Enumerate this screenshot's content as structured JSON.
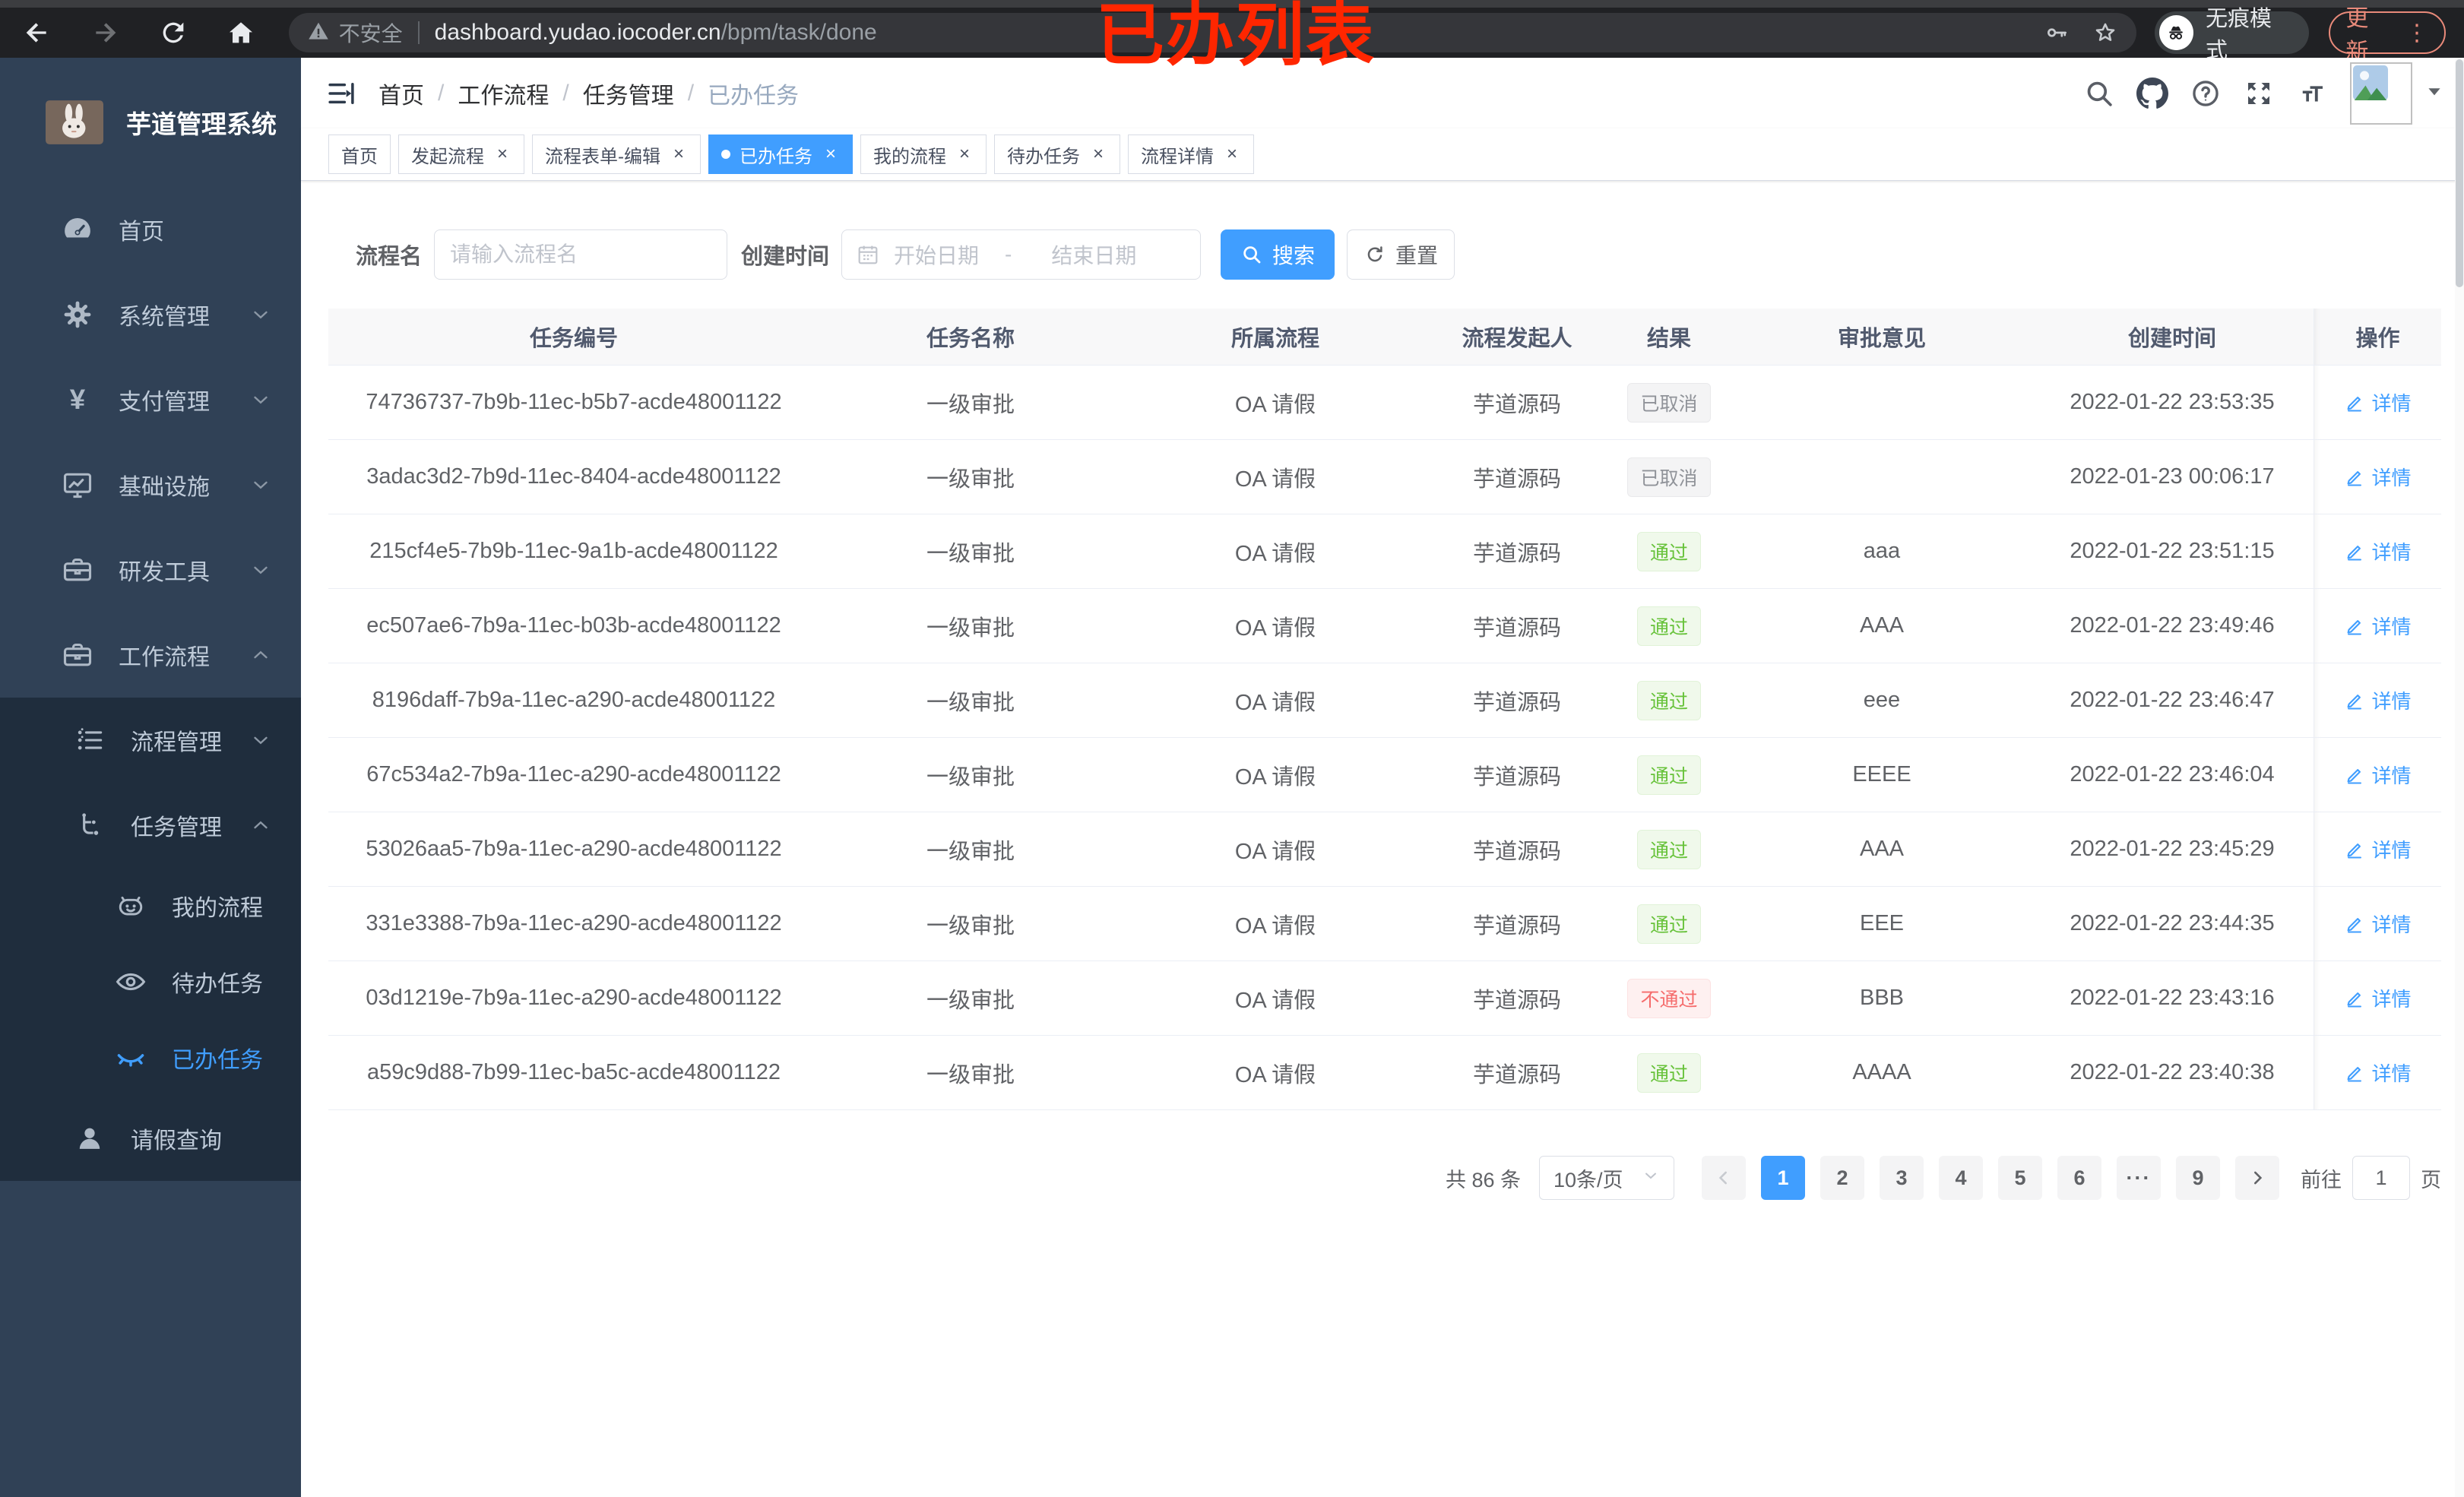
{
  "browser": {
    "security_label": "不安全",
    "url_domain": "dashboard.yudao.iocoder.cn",
    "url_path": "/bpm/task/done",
    "incognito_label": "无痕模式",
    "update_label": "更新",
    "icons": [
      "back-icon",
      "forward-icon",
      "reload-icon",
      "home-icon",
      "warning-icon",
      "key-icon",
      "star-icon",
      "incognito-icon",
      "more-vert-icon"
    ]
  },
  "annotation": {
    "text": "已办列表",
    "color": "#ff2600"
  },
  "sidebar": {
    "title": "芋道管理系统",
    "menu": [
      {
        "label": "首页",
        "icon": "dashboard-icon",
        "level": 1,
        "section": "base"
      },
      {
        "label": "系统管理",
        "icon": "gear-icon",
        "level": 1,
        "section": "base",
        "chevron": "down"
      },
      {
        "label": "支付管理",
        "icon": "yen-icon",
        "level": 1,
        "section": "base",
        "chevron": "down"
      },
      {
        "label": "基础设施",
        "icon": "monitor-icon",
        "level": 1,
        "section": "base",
        "chevron": "down"
      },
      {
        "label": "研发工具",
        "icon": "toolbox-icon",
        "level": 1,
        "section": "base",
        "chevron": "down"
      },
      {
        "label": "工作流程",
        "icon": "briefcase-icon",
        "level": 1,
        "section": "base",
        "chevron": "up"
      },
      {
        "label": "流程管理",
        "icon": "list-icon",
        "level": 2,
        "section": "sub",
        "chevron": "down"
      },
      {
        "label": "任务管理",
        "icon": "flow-icon",
        "level": 2,
        "section": "sub",
        "chevron": "up"
      },
      {
        "label": "我的流程",
        "icon": "robot-icon",
        "level": 3,
        "section": "sub"
      },
      {
        "label": "待办任务",
        "icon": "eye-icon",
        "level": 3,
        "section": "sub"
      },
      {
        "label": "已办任务",
        "icon": "eye-closed-icon",
        "level": 3,
        "section": "sub",
        "active": true
      },
      {
        "label": "请假查询",
        "icon": "user-icon",
        "level": 2,
        "section": "sub"
      }
    ]
  },
  "header": {
    "breadcrumb": [
      "首页",
      "工作流程",
      "任务管理",
      "已办任务"
    ],
    "icons": [
      "search-icon",
      "github-icon",
      "question-icon",
      "fullscreen-icon",
      "font-size-icon",
      "avatar",
      "chevron-down-icon"
    ]
  },
  "tabs": [
    {
      "label": "首页",
      "closable": false,
      "active": false
    },
    {
      "label": "发起流程",
      "closable": true,
      "active": false
    },
    {
      "label": "流程表单-编辑",
      "closable": true,
      "active": false
    },
    {
      "label": "已办任务",
      "closable": true,
      "active": true
    },
    {
      "label": "我的流程",
      "closable": true,
      "active": false
    },
    {
      "label": "待办任务",
      "closable": true,
      "active": false
    },
    {
      "label": "流程详情",
      "closable": true,
      "active": false
    }
  ],
  "filters": {
    "name_label": "流程名",
    "name_placeholder": "请输入流程名",
    "time_label": "创建时间",
    "start_placeholder": "开始日期",
    "range_separator": "-",
    "end_placeholder": "结束日期",
    "search_label": "搜索",
    "reset_label": "重置"
  },
  "table": {
    "columns": [
      "任务编号",
      "任务名称",
      "所属流程",
      "流程发起人",
      "结果",
      "审批意见",
      "创建时间",
      "操作"
    ],
    "action_label": "详情",
    "rows": [
      {
        "id": "74736737-7b9b-11ec-b5b7-acde48001122",
        "name": "一级审批",
        "process": "OA 请假",
        "initiator": "芋道源码",
        "result": "已取消",
        "result_type": "info",
        "opinion": "",
        "created": "2022-01-22 23:53:35"
      },
      {
        "id": "3adac3d2-7b9d-11ec-8404-acde48001122",
        "name": "一级审批",
        "process": "OA 请假",
        "initiator": "芋道源码",
        "result": "已取消",
        "result_type": "info",
        "opinion": "",
        "created": "2022-01-23 00:06:17"
      },
      {
        "id": "215cf4e5-7b9b-11ec-9a1b-acde48001122",
        "name": "一级审批",
        "process": "OA 请假",
        "initiator": "芋道源码",
        "result": "通过",
        "result_type": "success",
        "opinion": "aaa",
        "created": "2022-01-22 23:51:15"
      },
      {
        "id": "ec507ae6-7b9a-11ec-b03b-acde48001122",
        "name": "一级审批",
        "process": "OA 请假",
        "initiator": "芋道源码",
        "result": "通过",
        "result_type": "success",
        "opinion": "AAA",
        "created": "2022-01-22 23:49:46"
      },
      {
        "id": "8196daff-7b9a-11ec-a290-acde48001122",
        "name": "一级审批",
        "process": "OA 请假",
        "initiator": "芋道源码",
        "result": "通过",
        "result_type": "success",
        "opinion": "eee",
        "created": "2022-01-22 23:46:47"
      },
      {
        "id": "67c534a2-7b9a-11ec-a290-acde48001122",
        "name": "一级审批",
        "process": "OA 请假",
        "initiator": "芋道源码",
        "result": "通过",
        "result_type": "success",
        "opinion": "EEEE",
        "created": "2022-01-22 23:46:04"
      },
      {
        "id": "53026aa5-7b9a-11ec-a290-acde48001122",
        "name": "一级审批",
        "process": "OA 请假",
        "initiator": "芋道源码",
        "result": "通过",
        "result_type": "success",
        "opinion": "AAA",
        "created": "2022-01-22 23:45:29"
      },
      {
        "id": "331e3388-7b9a-11ec-a290-acde48001122",
        "name": "一级审批",
        "process": "OA 请假",
        "initiator": "芋道源码",
        "result": "通过",
        "result_type": "success",
        "opinion": "EEE",
        "created": "2022-01-22 23:44:35"
      },
      {
        "id": "03d1219e-7b9a-11ec-a290-acde48001122",
        "name": "一级审批",
        "process": "OA 请假",
        "initiator": "芋道源码",
        "result": "不通过",
        "result_type": "danger",
        "opinion": "BBB",
        "created": "2022-01-22 23:43:16"
      },
      {
        "id": "a59c9d88-7b99-11ec-ba5c-acde48001122",
        "name": "一级审批",
        "process": "OA 请假",
        "initiator": "芋道源码",
        "result": "通过",
        "result_type": "success",
        "opinion": "AAAA",
        "created": "2022-01-22 23:40:38"
      }
    ]
  },
  "pagination": {
    "total": "共 86 条",
    "page_size": "10条/页",
    "pages": [
      {
        "label": "1",
        "active": true
      },
      {
        "label": "2"
      },
      {
        "label": "3"
      },
      {
        "label": "4"
      },
      {
        "label": "5"
      },
      {
        "label": "6"
      },
      {
        "label": "···",
        "ellipsis": true
      },
      {
        "label": "9"
      }
    ],
    "jump_prefix": "前往",
    "jump_value": "1",
    "jump_suffix": "页"
  },
  "colors": {
    "accent": "#409eff",
    "success": "#67c23a",
    "danger": "#f56c6c",
    "info": "#909399",
    "sidebar_bg": "#304156",
    "submenu_bg": "#1f2d3d",
    "annotation_red": "#ff2600"
  }
}
